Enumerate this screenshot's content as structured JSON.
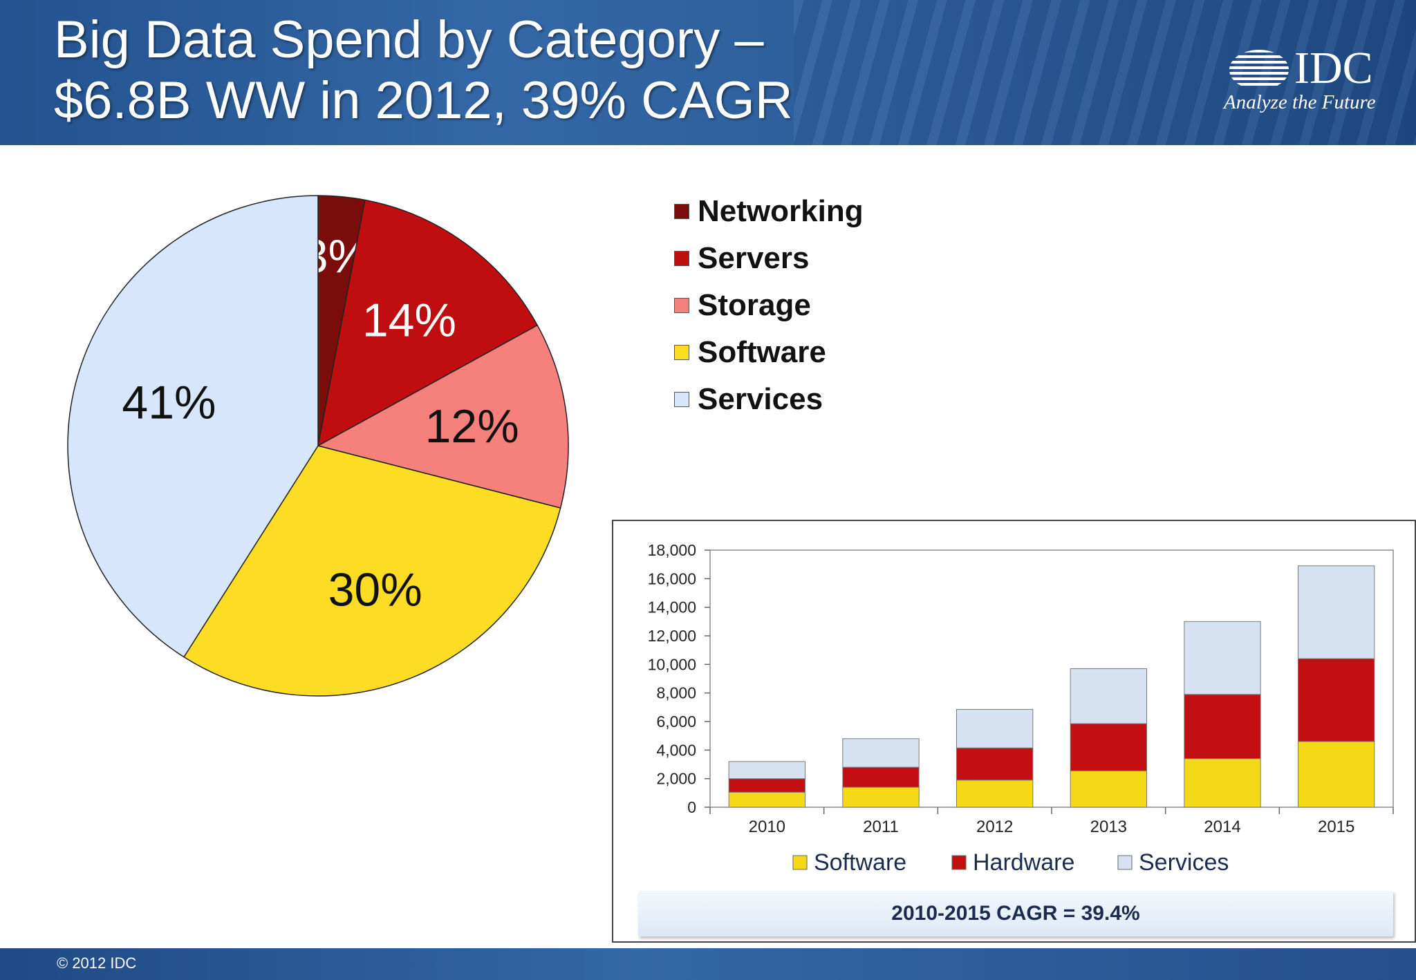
{
  "header": {
    "title_line1": "Big Data Spend by Category –",
    "title_line2": "$6.8B WW in 2012, 39% CAGR",
    "logo_text": "IDC",
    "logo_tagline": "Analyze the Future"
  },
  "footer": {
    "copyright": "© 2012 IDC"
  },
  "chart_data": [
    {
      "type": "pie",
      "title": "",
      "slices": [
        {
          "label": "Networking",
          "value": 3,
          "display": "3%",
          "color": "#7a0c0c",
          "text_color": "#ffffff"
        },
        {
          "label": "Servers",
          "value": 14,
          "display": "14%",
          "color": "#c00d10",
          "text_color": "#ffffff"
        },
        {
          "label": "Storage",
          "value": 12,
          "display": "12%",
          "color": "#f6807c",
          "text_color": "#111111"
        },
        {
          "label": "Software",
          "value": 30,
          "display": "30%",
          "color": "#fddd24",
          "text_color": "#111111"
        },
        {
          "label": "Services",
          "value": 41,
          "display": "41%",
          "color": "#d7e6fb",
          "text_color": "#111111"
        }
      ],
      "legend": [
        "Networking",
        "Servers",
        "Storage",
        "Software",
        "Services"
      ],
      "legend_position": "right"
    },
    {
      "type": "bar",
      "stacked": true,
      "categories": [
        "2010",
        "2011",
        "2012",
        "2013",
        "2014",
        "2015"
      ],
      "series": [
        {
          "name": "Software",
          "color": "#f5d816",
          "values": [
            1050,
            1400,
            1900,
            2550,
            3400,
            4600
          ]
        },
        {
          "name": "Hardware",
          "color": "#c40f12",
          "values": [
            950,
            1400,
            2250,
            3300,
            4500,
            5800
          ]
        },
        {
          "name": "Services",
          "color": "#d6e2f2",
          "values": [
            1200,
            2000,
            2700,
            3850,
            5100,
            6500
          ]
        }
      ],
      "ylim": [
        0,
        18000
      ],
      "yticks": [
        "0",
        "2,000",
        "4,000",
        "6,000",
        "8,000",
        "10,000",
        "12,000",
        "14,000",
        "16,000",
        "18,000"
      ],
      "xlabel": "",
      "ylabel": "",
      "legend_position": "bottom",
      "grid": false,
      "annotation": "2010-2015 CAGR = 39.4%"
    }
  ]
}
